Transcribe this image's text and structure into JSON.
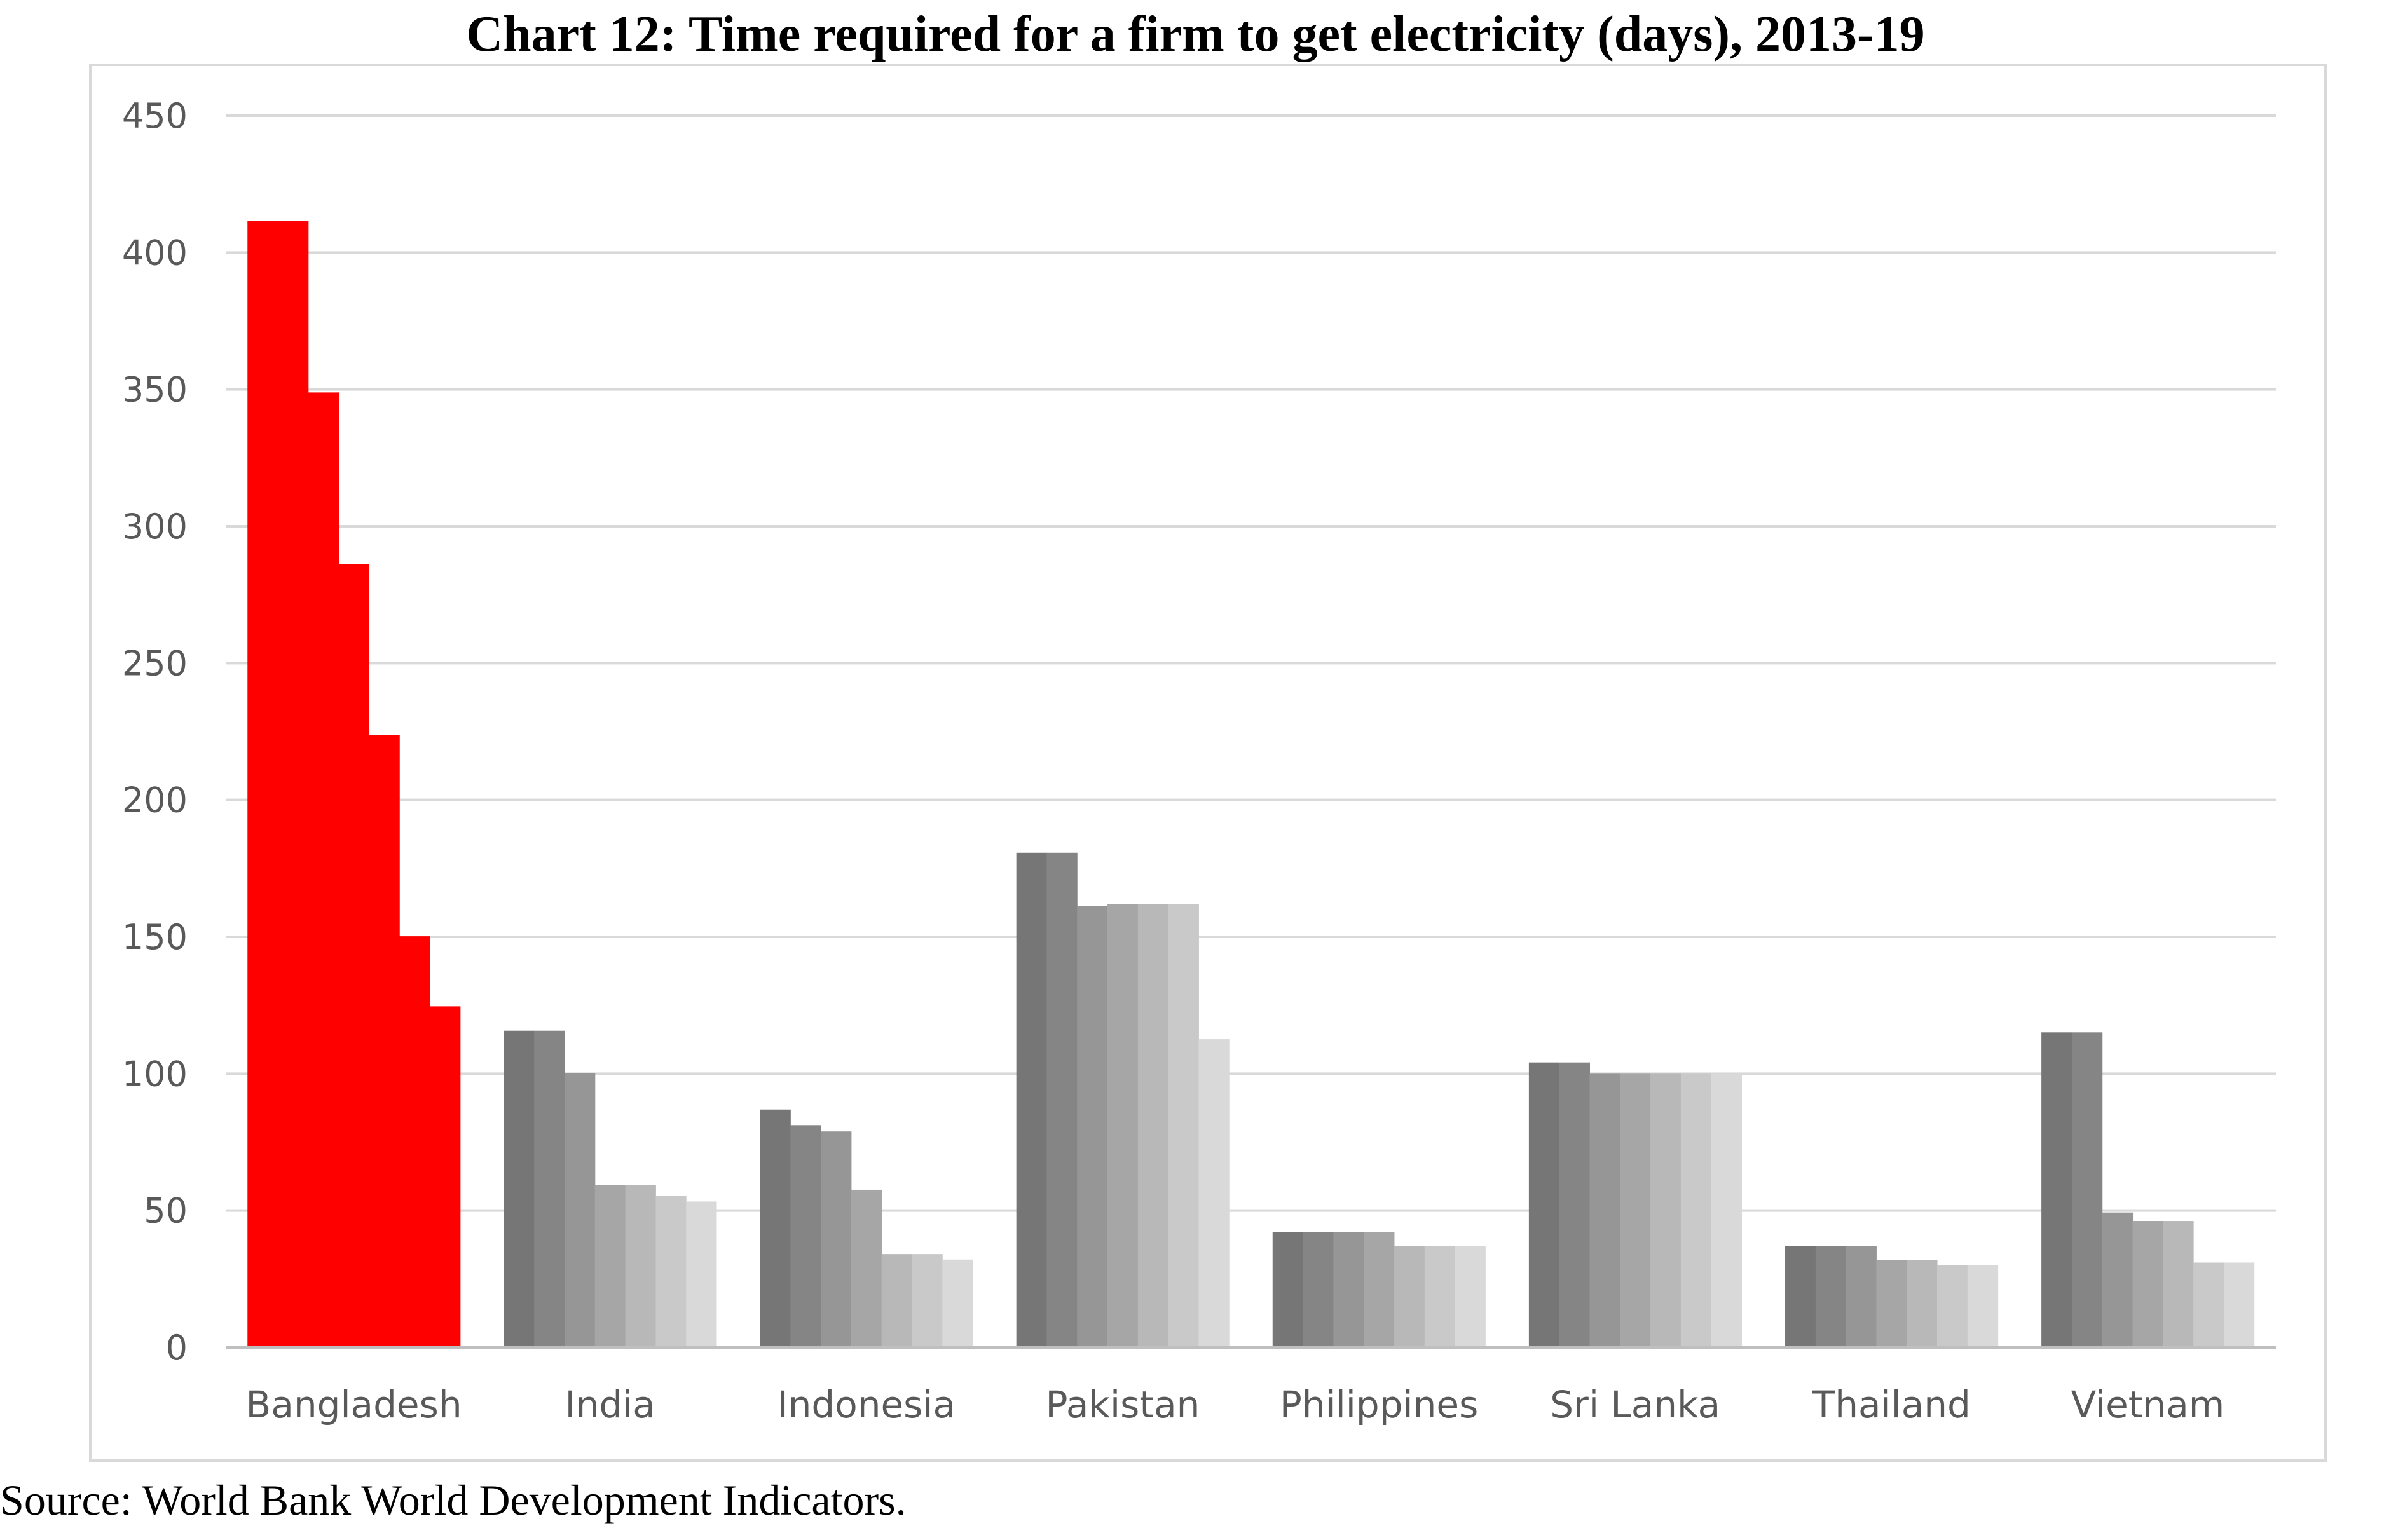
{
  "title": "Chart 12: Time required for a firm to get electricity (days), 2013-19",
  "source": "Source: World Bank World Development Indicators.",
  "colors": {
    "highlight": "#ff0000",
    "series": [
      "#767676",
      "#858585",
      "#969696",
      "#a6a6a6",
      "#b8b8b8",
      "#c9c9c9",
      "#d9d9d9"
    ],
    "gridline": "#d9d9d9",
    "axis": "#bfbfbf",
    "text": "#595959"
  },
  "chart_data": {
    "type": "bar",
    "title": "Chart 12: Time required for a firm to get electricity (days), 2013-19",
    "xlabel": "",
    "ylabel": "",
    "ylim": [
      0,
      450
    ],
    "yticks": [
      0,
      50,
      100,
      150,
      200,
      250,
      300,
      350,
      400,
      450
    ],
    "grid": true,
    "legend": "none",
    "highlight_category": "Bangladesh",
    "categories": [
      "Bangladesh",
      "India",
      "Indonesia",
      "Pakistan",
      "Philippines",
      "Sri Lanka",
      "Thailand",
      "Vietnam"
    ],
    "values": [
      [
        411.5,
        411.5,
        348.9,
        286.3,
        223.7,
        150.2,
        124.6
      ],
      [
        115.7,
        115.7,
        100.2,
        59.4,
        59.4,
        55.4,
        53.3
      ],
      [
        86.9,
        81.2,
        78.9,
        57.6,
        34.1,
        34.1,
        32.1
      ],
      [
        180.7,
        180.7,
        161.2,
        162.0,
        162.0,
        162.0,
        112.6
      ],
      [
        42.1,
        42.1,
        42.1,
        42.1,
        37.0,
        37.0,
        37.0
      ],
      [
        104.1,
        104.1,
        100.0,
        100.0,
        100.0,
        100.0,
        100.0
      ],
      [
        37.1,
        37.1,
        37.1,
        31.9,
        31.9,
        30.0,
        30.0
      ],
      [
        115.1,
        115.1,
        49.3,
        46.2,
        46.2,
        31.0,
        31.0
      ]
    ]
  }
}
